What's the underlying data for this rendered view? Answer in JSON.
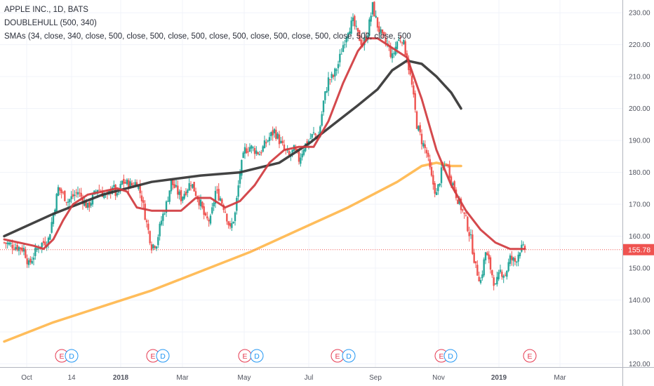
{
  "header": {
    "symbol_line": "APPLE INC., 1D, BATS",
    "indicator_1": "DOUBLEHULL (500, 340)",
    "indicator_2": "SMAs (34, close, 340, close, 500, close, 500, close, 500, close, 500, close, 500, close, 500, close, 500, close, 500, close, 500, close"
  },
  "last_price": "155.78",
  "colors": {
    "up": "#26a69a",
    "down": "#ef5350",
    "sma34": "#d0393e",
    "sma340": "#333333",
    "sma500": "#ffb74d",
    "price_tag": "#ef5350",
    "earnings": "#e53950",
    "dividends": "#2196f3"
  },
  "chart_data": {
    "type": "candlestick",
    "y_axis_ticks": [
      "230.00",
      "220.00",
      "210.00",
      "200.00",
      "190.00",
      "180.00",
      "170.00",
      "160.00",
      "150.00",
      "140.00",
      "130.00",
      "120.00"
    ],
    "ylim": [
      119,
      234
    ],
    "x_axis_labels": [
      {
        "label": "Oct",
        "bold": false
      },
      {
        "label": "14",
        "bold": false
      },
      {
        "label": "2018",
        "bold": true
      },
      {
        "label": "Mar",
        "bold": false
      },
      {
        "label": "May",
        "bold": false
      },
      {
        "label": "Jul",
        "bold": false
      },
      {
        "label": "Sep",
        "bold": false
      },
      {
        "label": "Nov",
        "bold": false
      },
      {
        "label": "2019",
        "bold": true
      },
      {
        "label": "Mar",
        "bold": false
      }
    ],
    "events": [
      {
        "type": "earnings",
        "label": "E"
      },
      {
        "type": "dividend",
        "label": "D"
      },
      {
        "type": "earnings",
        "label": "E"
      },
      {
        "type": "dividend",
        "label": "D"
      },
      {
        "type": "earnings",
        "label": "E"
      },
      {
        "type": "dividend",
        "label": "D"
      },
      {
        "type": "earnings",
        "label": "E"
      },
      {
        "type": "dividend",
        "label": "D"
      },
      {
        "type": "earnings",
        "label": "E"
      },
      {
        "type": "dividend",
        "label": "D"
      },
      {
        "type": "earnings",
        "label": "E"
      }
    ],
    "close_path": [
      [
        0,
        158
      ],
      [
        4,
        156
      ],
      [
        5,
        151
      ],
      [
        7,
        157
      ],
      [
        9,
        159
      ],
      [
        10,
        167
      ],
      [
        11,
        175
      ],
      [
        13,
        171
      ],
      [
        15,
        174
      ],
      [
        17,
        169
      ],
      [
        19,
        175
      ],
      [
        21,
        172
      ],
      [
        22,
        176
      ],
      [
        23,
        172
      ],
      [
        24,
        177
      ],
      [
        26,
        176
      ],
      [
        27,
        177
      ],
      [
        28,
        172
      ],
      [
        29,
        164
      ],
      [
        30,
        157
      ],
      [
        31,
        158
      ],
      [
        32,
        165
      ],
      [
        33,
        170
      ],
      [
        34,
        177
      ],
      [
        36,
        172
      ],
      [
        38,
        177
      ],
      [
        40,
        170
      ],
      [
        41,
        165
      ],
      [
        42,
        165
      ],
      [
        43,
        174
      ],
      [
        44,
        172
      ],
      [
        45,
        168
      ],
      [
        46,
        162
      ],
      [
        47,
        167
      ],
      [
        48,
        180
      ],
      [
        49,
        187
      ],
      [
        50,
        188
      ],
      [
        52,
        186
      ],
      [
        54,
        191
      ],
      [
        55,
        193
      ],
      [
        56,
        190
      ],
      [
        57,
        187
      ],
      [
        58,
        185
      ],
      [
        59,
        187
      ],
      [
        60,
        184
      ],
      [
        61,
        188
      ],
      [
        62,
        190
      ],
      [
        63,
        192
      ],
      [
        64,
        191
      ],
      [
        65,
        202
      ],
      [
        66,
        209
      ],
      [
        67,
        210
      ],
      [
        68,
        214
      ],
      [
        69,
        220
      ],
      [
        70,
        225
      ],
      [
        71,
        227
      ],
      [
        72,
        223
      ],
      [
        73,
        220
      ],
      [
        74,
        224
      ],
      [
        75,
        232
      ],
      [
        76,
        226
      ],
      [
        77,
        222
      ],
      [
        78,
        220
      ],
      [
        79,
        216
      ],
      [
        80,
        221
      ],
      [
        81,
        222
      ],
      [
        82,
        216
      ],
      [
        83,
        207
      ],
      [
        84,
        195
      ],
      [
        85,
        190
      ],
      [
        86,
        186
      ],
      [
        87,
        178
      ],
      [
        88,
        173
      ],
      [
        89,
        180
      ],
      [
        90,
        183
      ],
      [
        91,
        178
      ],
      [
        92,
        173
      ],
      [
        93,
        169
      ],
      [
        94,
        165
      ],
      [
        95,
        159
      ],
      [
        96,
        150
      ],
      [
        97,
        146
      ],
      [
        98,
        155
      ],
      [
        99,
        150
      ],
      [
        100,
        144
      ],
      [
        101,
        149
      ],
      [
        102,
        148
      ],
      [
        103,
        153
      ],
      [
        104,
        152
      ],
      [
        105,
        156
      ],
      [
        106,
        156
      ]
    ],
    "series": [
      {
        "name": "SMA 34",
        "values": [
          [
            0,
            159
          ],
          [
            6,
            157
          ],
          [
            8,
            156
          ],
          [
            10,
            159
          ],
          [
            12,
            165
          ],
          [
            14,
            170
          ],
          [
            17,
            173
          ],
          [
            20,
            174
          ],
          [
            23,
            175
          ],
          [
            25,
            174
          ],
          [
            27,
            169
          ],
          [
            30,
            168
          ],
          [
            33,
            168
          ],
          [
            36,
            168
          ],
          [
            39,
            172
          ],
          [
            42,
            172
          ],
          [
            45,
            169
          ],
          [
            48,
            171
          ],
          [
            51,
            176
          ],
          [
            54,
            183
          ],
          [
            57,
            187
          ],
          [
            60,
            188
          ],
          [
            63,
            188
          ],
          [
            66,
            196
          ],
          [
            69,
            208
          ],
          [
            72,
            218
          ],
          [
            74,
            222
          ],
          [
            76,
            222
          ],
          [
            79,
            219
          ],
          [
            82,
            216
          ],
          [
            85,
            203
          ],
          [
            88,
            187
          ],
          [
            91,
            176
          ],
          [
            94,
            168
          ],
          [
            97,
            162
          ],
          [
            100,
            158
          ],
          [
            103,
            156
          ],
          [
            106,
            156
          ]
        ]
      },
      {
        "name": "SMA 340",
        "values": [
          [
            0,
            160
          ],
          [
            10,
            167
          ],
          [
            20,
            173
          ],
          [
            30,
            177
          ],
          [
            40,
            179
          ],
          [
            48,
            180
          ],
          [
            56,
            183
          ],
          [
            62,
            189
          ],
          [
            67,
            195
          ],
          [
            72,
            201
          ],
          [
            76,
            206
          ],
          [
            79,
            212
          ],
          [
            82,
            215
          ],
          [
            85,
            214
          ],
          [
            88,
            210
          ],
          [
            91,
            205
          ],
          [
            93,
            200
          ]
        ]
      },
      {
        "name": "SMA 500",
        "values": [
          [
            0,
            127
          ],
          [
            10,
            133
          ],
          [
            20,
            138
          ],
          [
            30,
            143
          ],
          [
            40,
            149
          ],
          [
            50,
            155
          ],
          [
            60,
            162
          ],
          [
            70,
            169
          ],
          [
            80,
            177
          ],
          [
            85,
            182
          ],
          [
            88,
            183
          ],
          [
            91,
            182
          ],
          [
            93,
            182
          ]
        ]
      }
    ]
  }
}
